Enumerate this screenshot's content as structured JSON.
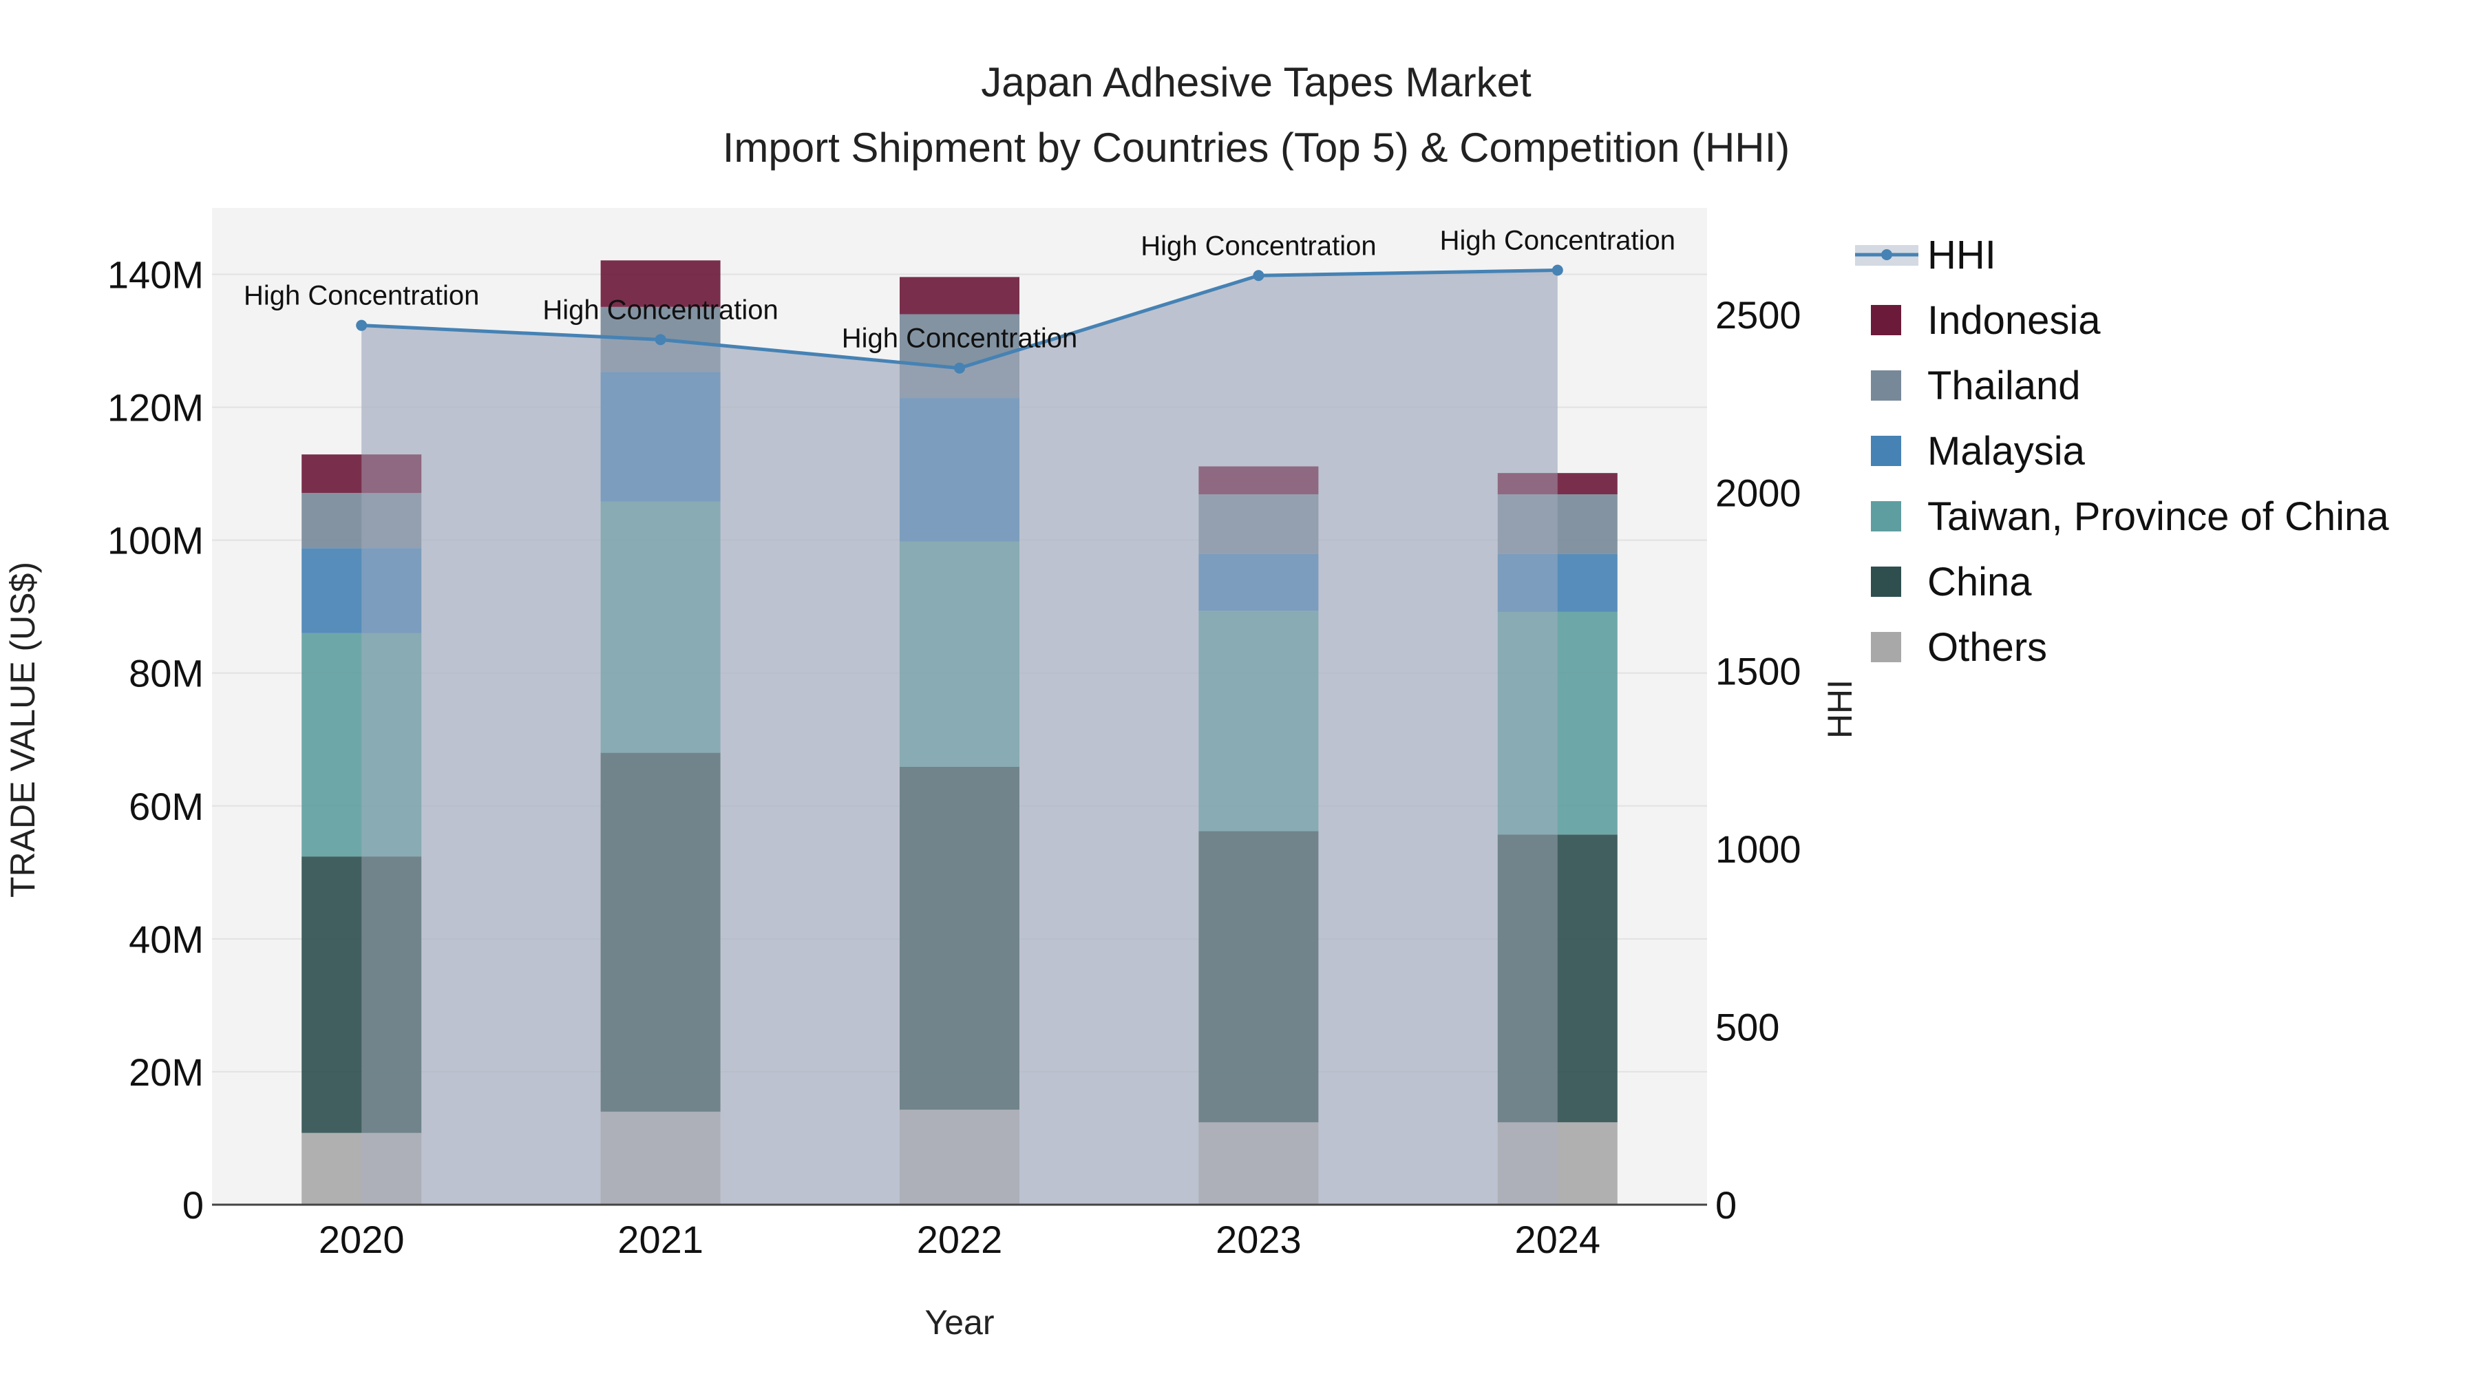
{
  "chart_data": {
    "type": "bar",
    "stacked": true,
    "title": "Japan Adhesive Tapes Market",
    "subtitle": "Import Shipment by Countries (Top 5) & Competition (HHI)",
    "xlabel": "Year",
    "ylabel": "TRADE VALUE (US$)",
    "y2label": "HHI",
    "categories": [
      "2020",
      "2021",
      "2022",
      "2023",
      "2024"
    ],
    "ylim": [
      0,
      150000000
    ],
    "y2lim": [
      0,
      2800
    ],
    "yticks": [
      0,
      20000000,
      40000000,
      60000000,
      80000000,
      100000000,
      120000000,
      140000000
    ],
    "ytick_labels": [
      "0",
      "20M",
      "40M",
      "60M",
      "80M",
      "100M",
      "120M",
      "140M"
    ],
    "y2ticks": [
      0,
      500,
      1000,
      1500,
      2000,
      2500
    ],
    "y2tick_labels": [
      "0",
      "500",
      "1000",
      "1500",
      "2000",
      "2500"
    ],
    "series": [
      {
        "name": "Others",
        "color": "#a8a8a8",
        "values": [
          10800000,
          14000000,
          14300000,
          12400000,
          12400000
        ]
      },
      {
        "name": "China",
        "color": "#2f4f4f",
        "values": [
          41600000,
          54000000,
          51600000,
          43800000,
          43300000
        ]
      },
      {
        "name": "Taiwan, Province of China",
        "color": "#5f9ea0",
        "values": [
          33600000,
          37800000,
          33900000,
          33200000,
          33500000
        ]
      },
      {
        "name": "Malaysia",
        "color": "#4682b4",
        "values": [
          12800000,
          19500000,
          21600000,
          8500000,
          8700000
        ]
      },
      {
        "name": "Thailand",
        "color": "#778899",
        "values": [
          8300000,
          9800000,
          12600000,
          9000000,
          9000000
        ]
      },
      {
        "name": "Indonesia",
        "color": "#6b1a3a",
        "values": [
          5800000,
          7000000,
          5600000,
          4200000,
          3200000
        ]
      }
    ],
    "hhi": {
      "name": "HHI",
      "color": "#4682b4",
      "values": [
        2470,
        2430,
        2350,
        2610,
        2625
      ]
    },
    "annotations": [
      "High Concentration",
      "High Concentration",
      "High Concentration",
      "High Concentration",
      "High Concentration"
    ],
    "legend_order": [
      "HHI",
      "Indonesia",
      "Thailand",
      "Malaysia",
      "Taiwan, Province of China",
      "China",
      "Others"
    ],
    "legend_position": "right",
    "grid": true
  }
}
